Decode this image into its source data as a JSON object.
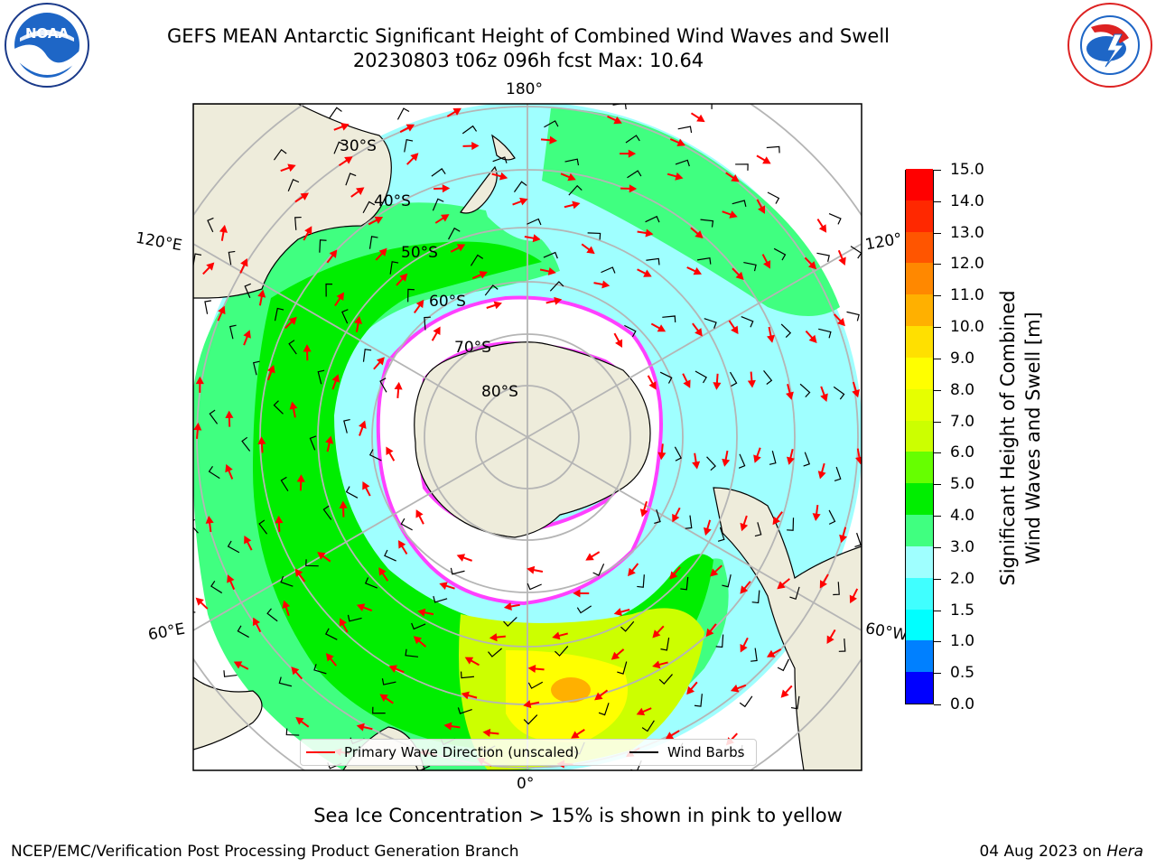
{
  "title_line1": "GEFS MEAN Antarctic Significant Height of Combined Wind Waves and Swell",
  "title_line2": "20230803 t06z 096h fcst   Max: 10.64",
  "logos": {
    "left": "noaa-logo",
    "left_text": "NOAA",
    "right": "nws-logo"
  },
  "map": {
    "longitude_labels": {
      "top": "180°",
      "left_upper": "120°E",
      "right_upper": "120°",
      "left_lower": "60°E",
      "right_lower": "60°W",
      "bottom": "0°"
    },
    "latitude_labels": [
      "30°S",
      "40°S",
      "50°S",
      "60°S",
      "70°S",
      "80°S"
    ],
    "colors": {
      "land": "#eeecdb",
      "ice_edge": "#ff40ff",
      "grid": "#b5b5b5"
    }
  },
  "colorbar": {
    "title_line1": "Significant Height of Combined",
    "title_line2": "Wind Waves and Swell [m]",
    "ticks": [
      "0.0",
      "0.5",
      "1.0",
      "1.5",
      "2.0",
      "3.0",
      "4.0",
      "5.0",
      "6.0",
      "7.0",
      "8.0",
      "9.0",
      "10.0",
      "11.0",
      "12.0",
      "13.0",
      "14.0",
      "15.0"
    ],
    "colors": [
      "#0000ff",
      "#0080ff",
      "#00ffff",
      "#40ffff",
      "#9fffff",
      "#40ff80",
      "#00ee00",
      "#66ff00",
      "#ccff00",
      "#e6ff00",
      "#ffff00",
      "#ffe000",
      "#ffb000",
      "#ff8800",
      "#ff5500",
      "#ff2800",
      "#ff0000"
    ]
  },
  "legend": {
    "wave_label": "Primary Wave Direction (unscaled)",
    "wave_color": "#ff0000",
    "wind_label": "Wind Barbs",
    "wind_color": "#000000"
  },
  "footer_note": "Sea Ice Concentration > 15% is shown in pink to yellow",
  "footer_left": "NCEP/EMC/Verification Post Processing Product Generation Branch",
  "footer_date": "04 Aug 2023 on",
  "footer_host": "Hera"
}
